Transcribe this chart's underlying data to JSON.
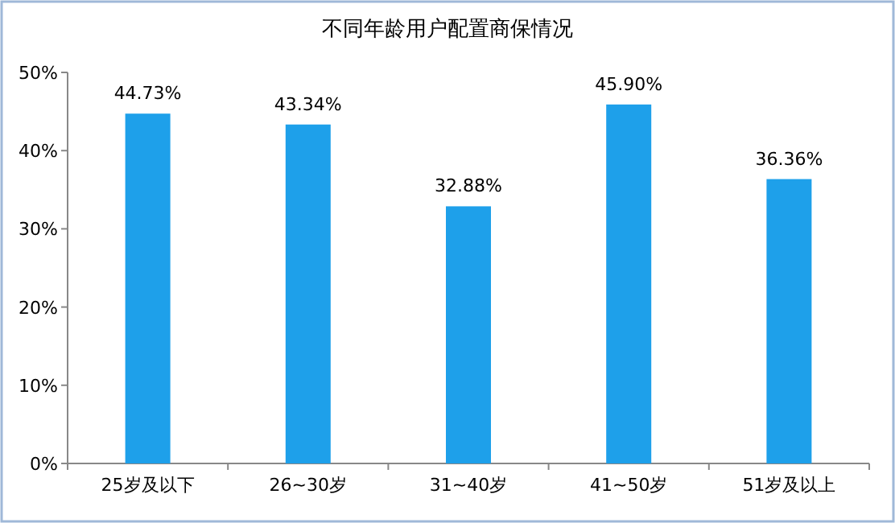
{
  "chart_data": {
    "type": "bar",
    "title": "不同年龄用户配置商保情况",
    "categories": [
      "25岁及以下",
      "26~30岁",
      "31~40岁",
      "41~50岁",
      "51岁及以上"
    ],
    "values": [
      44.73,
      43.34,
      32.88,
      45.9,
      36.36
    ],
    "value_labels": [
      "44.73%",
      "43.34%",
      "32.88%",
      "45.90%",
      "36.36%"
    ],
    "color": "#1ea0ea",
    "ylim": [
      0,
      50
    ],
    "yticks": [
      {
        "value": 0,
        "label": "0%"
      },
      {
        "value": 10,
        "label": "10%"
      },
      {
        "value": 20,
        "label": "20%"
      },
      {
        "value": 30,
        "label": "30%"
      },
      {
        "value": 40,
        "label": "40%"
      },
      {
        "value": 50,
        "label": "50%"
      }
    ]
  }
}
